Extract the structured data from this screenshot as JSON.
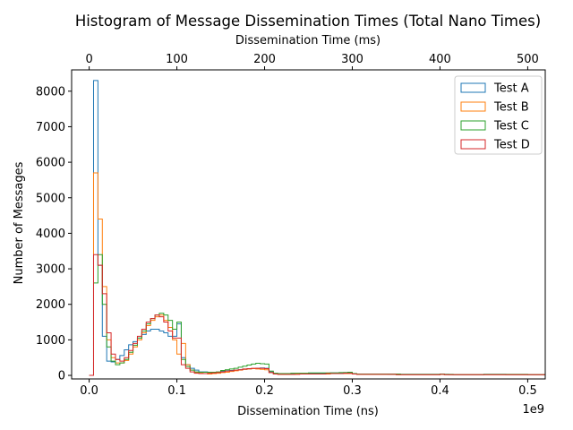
{
  "chart_data": {
    "type": "histogram",
    "title": "Histogram of Message Dissemination Times (Total Nano Times)",
    "xlabel": "Dissemination Time (ns)",
    "ylabel": "Number of Messages",
    "x_offset_label": "1e9",
    "x_unit_multiplier": 1000000000,
    "xlim": [
      -0.02,
      0.52
    ],
    "ylim": [
      -100,
      8600
    ],
    "xticks": [
      0.0,
      0.1,
      0.2,
      0.3,
      0.4,
      0.5
    ],
    "xtick_labels": [
      "0.0",
      "0.1",
      "0.2",
      "0.3",
      "0.4",
      "0.5"
    ],
    "yticks": [
      0,
      1000,
      2000,
      3000,
      4000,
      5000,
      6000,
      7000,
      8000
    ],
    "ytick_labels": [
      "0",
      "1000",
      "2000",
      "3000",
      "4000",
      "5000",
      "6000",
      "7000",
      "8000"
    ],
    "secondary_xaxis": {
      "label": "Dissemination Time (ms)",
      "ticks": [
        0,
        100,
        200,
        300,
        400,
        500
      ],
      "tick_labels": [
        "0",
        "100",
        "200",
        "300",
        "400",
        "500"
      ]
    },
    "legend_position": "upper right",
    "grid": false,
    "bin_width": 0.005,
    "bin_start": 0.0,
    "series": [
      {
        "name": "Test A",
        "color": "#1f77b4",
        "values": [
          0,
          8300,
          3100,
          1100,
          400,
          380,
          450,
          560,
          720,
          860,
          950,
          1050,
          1150,
          1250,
          1300,
          1300,
          1250,
          1200,
          1100,
          1100,
          1450,
          500,
          300,
          200,
          150,
          100,
          100,
          90,
          90,
          90,
          120,
          130,
          140,
          150,
          160,
          170,
          180,
          190,
          200,
          210,
          200,
          100,
          50,
          40,
          40,
          40,
          40,
          40,
          50,
          50,
          60,
          60,
          60,
          60,
          60,
          70,
          70,
          70,
          80,
          80,
          50,
          40,
          40,
          40,
          40,
          40,
          40,
          40,
          30,
          30,
          30,
          30,
          30,
          30,
          30,
          30,
          30,
          30,
          30,
          30,
          40,
          30,
          20,
          20,
          20,
          20,
          20,
          20,
          20,
          20,
          30,
          30,
          30,
          30,
          30,
          20,
          20,
          20,
          20,
          20,
          20,
          20,
          20,
          20
        ]
      },
      {
        "name": "Test B",
        "color": "#ff7f0e",
        "values": [
          0,
          5700,
          4400,
          2500,
          1000,
          500,
          350,
          350,
          420,
          600,
          800,
          1000,
          1200,
          1400,
          1550,
          1650,
          1700,
          1550,
          1350,
          1000,
          600,
          900,
          300,
          150,
          80,
          60,
          50,
          40,
          50,
          60,
          80,
          90,
          110,
          130,
          150,
          170,
          180,
          190,
          180,
          170,
          160,
          80,
          40,
          30,
          30,
          30,
          30,
          40,
          40,
          40,
          40,
          40,
          40,
          40,
          40,
          50,
          50,
          50,
          50,
          50,
          40,
          30,
          30,
          30,
          30,
          30,
          30,
          30,
          30,
          30,
          20,
          20,
          20,
          20,
          20,
          20,
          20,
          20,
          20,
          20,
          30,
          20,
          20,
          20,
          20,
          20,
          20,
          20,
          20,
          20,
          20,
          20,
          20,
          20,
          20,
          20,
          20,
          20,
          20,
          20,
          20,
          20,
          20,
          20
        ]
      },
      {
        "name": "Test C",
        "color": "#2ca02c",
        "values": [
          0,
          2600,
          3400,
          2000,
          800,
          400,
          300,
          350,
          450,
          650,
          850,
          1050,
          1250,
          1450,
          1600,
          1700,
          1750,
          1700,
          1550,
          1300,
          1500,
          450,
          250,
          150,
          100,
          90,
          90,
          90,
          90,
          100,
          140,
          160,
          180,
          200,
          230,
          260,
          290,
          320,
          340,
          330,
          320,
          120,
          60,
          50,
          50,
          50,
          60,
          60,
          60,
          60,
          70,
          70,
          70,
          70,
          70,
          70,
          70,
          80,
          80,
          90,
          50,
          40,
          40,
          40,
          40,
          40,
          40,
          40,
          40,
          40,
          40,
          30,
          30,
          30,
          30,
          30,
          30,
          30,
          30,
          30,
          40,
          30,
          30,
          20,
          20,
          20,
          20,
          20,
          20,
          20,
          30,
          30,
          30,
          30,
          30,
          30,
          30,
          30,
          30,
          30,
          20,
          20,
          20,
          20
        ]
      },
      {
        "name": "Test D",
        "color": "#d62728",
        "values": [
          0,
          3400,
          3100,
          2300,
          1200,
          600,
          450,
          400,
          500,
          700,
          900,
          1100,
          1300,
          1500,
          1600,
          1700,
          1650,
          1500,
          1250,
          1050,
          1050,
          300,
          200,
          100,
          60,
          50,
          50,
          60,
          70,
          80,
          100,
          120,
          130,
          150,
          160,
          180,
          190,
          200,
          200,
          200,
          190,
          80,
          40,
          30,
          30,
          30,
          30,
          30,
          40,
          40,
          40,
          40,
          40,
          40,
          50,
          50,
          50,
          50,
          60,
          60,
          40,
          30,
          30,
          30,
          30,
          30,
          30,
          30,
          30,
          30,
          20,
          20,
          20,
          20,
          20,
          20,
          20,
          20,
          20,
          20,
          30,
          20,
          20,
          20,
          20,
          20,
          20,
          20,
          20,
          20,
          20,
          20,
          20,
          20,
          20,
          20,
          20,
          20,
          20,
          20,
          20,
          20,
          20,
          20
        ]
      }
    ]
  }
}
